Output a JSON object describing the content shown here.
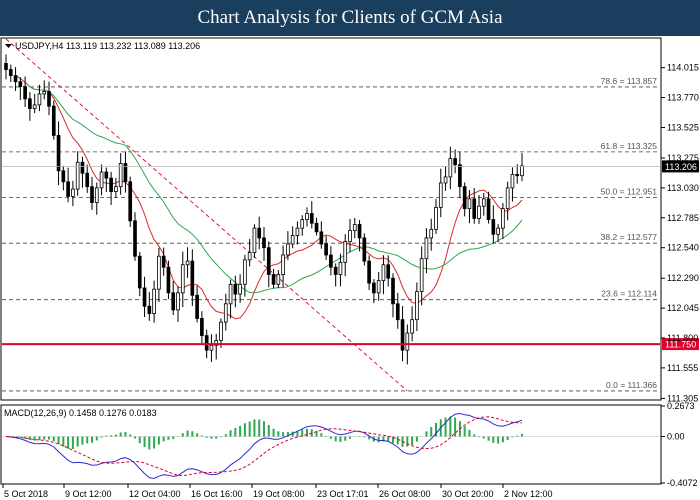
{
  "header": {
    "title": "Chart Analysis for Clients of GCM Asia"
  },
  "chart_data": {
    "type": "candlestick",
    "symbol_line": "USDJPY,H4  113.119 113.232 113.089 113.206",
    "price_axis": {
      "ylim": [
        111.3,
        114.25
      ],
      "ticks": [
        "114.015",
        "113.770",
        "113.525",
        "113.275",
        "113.030",
        "112.785",
        "112.540",
        "112.290",
        "112.045",
        "111.800",
        "111.555",
        "111.305"
      ]
    },
    "current_price": {
      "label": "113.206",
      "value": 113.206
    },
    "support_line": {
      "label": "111.750",
      "value": 111.75,
      "color": "#e0002a"
    },
    "fib_levels": [
      {
        "label": "78.6 = 113.857",
        "value": 113.857
      },
      {
        "label": "61.8 = 113.325",
        "value": 113.325
      },
      {
        "label": "50.0 = 112.951",
        "value": 112.951
      },
      {
        "label": "38.2 = 112.577",
        "value": 112.577
      },
      {
        "label": "23.6 = 112.114",
        "value": 112.114
      },
      {
        "label": "0.0 = 111.366",
        "value": 111.366
      }
    ],
    "x_axis_labels": [
      "5 Oct 2018",
      "9 Oct 12:00",
      "12 Oct 04:00",
      "16 Oct 16:00",
      "19 Oct 08:00",
      "23 Oct 17:01",
      "26 Oct 08:00",
      "30 Oct 20:00",
      "2 Nov 12:00"
    ],
    "closes": [
      114.0,
      113.95,
      113.9,
      113.86,
      113.76,
      113.68,
      113.71,
      113.8,
      113.82,
      113.7,
      113.46,
      113.17,
      113.08,
      112.96,
      113.02,
      113.24,
      113.15,
      113.04,
      112.91,
      113.03,
      113.16,
      113.11,
      113.0,
      113.04,
      113.23,
      113.08,
      112.76,
      112.47,
      112.21,
      112.06,
      112.0,
      112.2,
      112.47,
      112.38,
      112.17,
      112.03,
      112.17,
      112.4,
      112.43,
      112.15,
      111.96,
      111.82,
      111.7,
      111.74,
      111.78,
      111.93,
      112.08,
      112.24,
      112.16,
      112.24,
      112.44,
      112.5,
      112.7,
      112.62,
      112.54,
      112.32,
      112.24,
      112.32,
      112.48,
      112.57,
      112.64,
      112.7,
      112.77,
      112.82,
      112.74,
      112.67,
      112.57,
      112.48,
      112.38,
      112.32,
      112.42,
      112.59,
      112.68,
      112.73,
      112.62,
      112.43,
      112.25,
      112.17,
      112.27,
      112.4,
      112.29,
      112.08,
      111.95,
      111.7,
      111.84,
      111.95,
      112.18,
      112.45,
      112.62,
      112.69,
      112.87,
      113.07,
      113.12,
      113.27,
      113.22,
      113.04,
      112.86,
      112.94,
      112.78,
      112.88,
      112.94,
      112.77,
      112.65,
      112.7,
      112.86,
      113.03,
      113.14,
      113.13,
      113.21
    ],
    "sma_fast_color": "#d62b2b",
    "sma_slow_color": "#2fa84f",
    "fib_line_color": "#e0002a",
    "macd": {
      "label": "MACD(12,26,9) 0.1458 0.1276 0.0183",
      "ticks": [
        "0.2673",
        "0.00",
        "-0.4072"
      ],
      "ylim": [
        -0.4072,
        0.2673
      ],
      "signal_color": "#e0002a",
      "macd_line_color": "#2b2bd6",
      "histogram_color": "#2fa84f"
    }
  }
}
